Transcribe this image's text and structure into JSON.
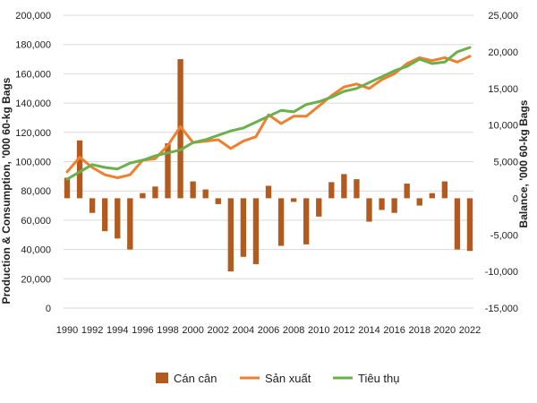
{
  "chart_data": {
    "type": "bar+line",
    "title": "",
    "ylabel_left": "Production & Consumption, '000 60-kg Bags",
    "ylabel_right": "Balance, '000 60-kg Bags",
    "ylim_left": [
      0,
      200000
    ],
    "ylim_right": [
      -15000,
      25000
    ],
    "yticks_left": [
      "0",
      "20,000",
      "40,000",
      "60,000",
      "80,000",
      "100,000",
      "120,000",
      "140,000",
      "160,000",
      "180,000",
      "200,000"
    ],
    "yticks_right": [
      "-15,000",
      "-10,000",
      "-5,000",
      "0",
      "5,000",
      "10,000",
      "15,000",
      "20,000",
      "25,000"
    ],
    "x": [
      1990,
      1991,
      1992,
      1993,
      1994,
      1995,
      1996,
      1997,
      1998,
      1999,
      2000,
      2001,
      2002,
      2003,
      2004,
      2005,
      2006,
      2007,
      2008,
      2009,
      2010,
      2011,
      2012,
      2013,
      2014,
      2015,
      2016,
      2017,
      2018,
      2019,
      2020,
      2021,
      2022
    ],
    "xtick_labels": [
      "1990",
      "1992",
      "1994",
      "1996",
      "1998",
      "2000",
      "2002",
      "2004",
      "2006",
      "2008",
      "2010",
      "2012",
      "2014",
      "2016",
      "2018",
      "2020",
      "2022"
    ],
    "grid": true,
    "legend_position": "bottom",
    "series": [
      {
        "name": "Cán cân",
        "kind": "bar",
        "axis": "right",
        "color": "#B35A1F",
        "values": [
          2800,
          7900,
          -2000,
          -4500,
          -5500,
          -7000,
          700,
          1600,
          7500,
          19000,
          2300,
          1200,
          -800,
          -10000,
          -8000,
          -9000,
          1700,
          -6500,
          -500,
          -6300,
          -2500,
          2200,
          3300,
          2600,
          -3200,
          -1600,
          -2000,
          2000,
          -1000,
          700,
          2300,
          -7000,
          -7200
        ]
      },
      {
        "name": "Sản xuất",
        "kind": "line",
        "axis": "left",
        "color": "#F07F2E",
        "values": [
          93000,
          103000,
          96000,
          91000,
          89000,
          91000,
          101000,
          102000,
          111000,
          124000,
          113000,
          114000,
          115000,
          109000,
          114000,
          117000,
          132000,
          126000,
          131000,
          131000,
          138000,
          145000,
          151000,
          153000,
          150000,
          156000,
          160000,
          167000,
          171000,
          169000,
          171000,
          168000,
          172000
        ]
      },
      {
        "name": "Tiêu thụ",
        "kind": "line",
        "axis": "left",
        "color": "#6AB04C",
        "values": [
          88000,
          93000,
          98000,
          96000,
          95000,
          99000,
          101000,
          104000,
          106000,
          108000,
          113000,
          115000,
          118000,
          121000,
          123000,
          127000,
          131000,
          135000,
          134000,
          139000,
          141000,
          144000,
          148000,
          150000,
          154000,
          158000,
          162000,
          165000,
          170000,
          167000,
          168000,
          175000,
          178000
        ]
      }
    ]
  }
}
